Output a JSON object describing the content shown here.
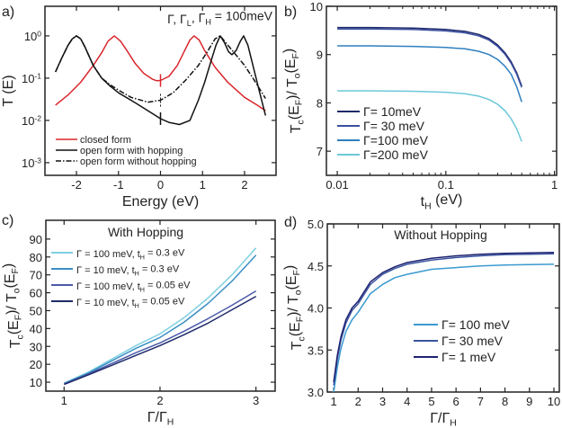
{
  "chart_data": [
    {
      "panel": "a)",
      "type": "line",
      "xlabel": "Energy (eV)",
      "ylabel": "T (E)",
      "yscale": "log",
      "xlim": [
        -2.75,
        2.75
      ],
      "ylim_log10": [
        -3.3,
        0.7
      ],
      "xticks": [
        -2,
        -1,
        0,
        1,
        2
      ],
      "xtick_labels": [
        "-2",
        "-1",
        "0",
        "1",
        "2"
      ],
      "yticks_log10": [
        0,
        -1,
        -2,
        -3
      ],
      "ytick_labels": [
        "10^0",
        "10^-1",
        "10^-2",
        "10^-3"
      ],
      "annotation": "Γ, Γ_L, Γ_H = 100meV",
      "legend_position": "bottom-left",
      "series": [
        {
          "name": "closed form",
          "color": "#d9262c",
          "dash": "solid",
          "x": [
            -2.5,
            -2.2,
            -1.9,
            -1.6,
            -1.4,
            -1.25,
            -1.1,
            -0.95,
            -0.8,
            -0.6,
            -0.4,
            -0.2,
            -0.1,
            0,
            0.2,
            0.4,
            0.55,
            0.7,
            0.8,
            0.92,
            1.05,
            1.3,
            1.6,
            2.0,
            2.3,
            2.5
          ],
          "y": [
            0.023,
            0.04,
            0.08,
            0.2,
            0.4,
            0.75,
            1.0,
            0.75,
            0.45,
            0.22,
            0.13,
            0.095,
            0.087,
            0.088,
            0.11,
            0.2,
            0.4,
            0.8,
            1.0,
            0.8,
            0.45,
            0.18,
            0.08,
            0.035,
            0.023,
            0.017
          ]
        },
        {
          "name": "open form with hopping",
          "color": "#111111",
          "dash": "solid",
          "x": [
            -2.5,
            -2.35,
            -2.2,
            -2.1,
            -2,
            -1.9,
            -1.8,
            -1.6,
            -1.4,
            -1.2,
            -1,
            -0.6,
            -0.3,
            0,
            0.2,
            0.45,
            0.7,
            0.9,
            1.05,
            1.2,
            1.32,
            1.42,
            1.52,
            1.62,
            1.7,
            1.8,
            1.9,
            1.98,
            2.08,
            2.2,
            2.35,
            2.5
          ],
          "y": [
            0.14,
            0.3,
            0.6,
            0.85,
            1.0,
            0.85,
            0.55,
            0.2,
            0.1,
            0.065,
            0.045,
            0.026,
            0.017,
            0.011,
            0.009,
            0.008,
            0.01,
            0.03,
            0.08,
            0.25,
            0.6,
            1.0,
            0.7,
            0.42,
            0.36,
            0.45,
            0.75,
            1.0,
            0.6,
            0.2,
            0.05,
            0.013
          ]
        },
        {
          "name": "open form without hopping",
          "color": "#111111",
          "dash": "dashdot",
          "x": [
            -2.5,
            -2.35,
            -2.2,
            -2.1,
            -2,
            -1.9,
            -1.8,
            -1.6,
            -1.4,
            -1.2,
            -1,
            -0.7,
            -0.3,
            0,
            0.3,
            0.6,
            0.9,
            1.1,
            1.3,
            1.42,
            1.55,
            1.8,
            2,
            2.2,
            2.5
          ],
          "y": [
            0.14,
            0.3,
            0.6,
            0.85,
            1.0,
            0.85,
            0.55,
            0.2,
            0.1,
            0.07,
            0.052,
            0.035,
            0.027,
            0.03,
            0.045,
            0.09,
            0.2,
            0.4,
            0.85,
            1.0,
            0.7,
            0.35,
            0.2,
            0.1,
            0.033
          ]
        }
      ]
    },
    {
      "panel": "b)",
      "type": "line",
      "xlabel": "t_H (eV)",
      "ylabel": "T_c(E_F)/ T_o(E_F)",
      "xscale": "log",
      "xlim_log10": [
        -2.1,
        0.02
      ],
      "ylim": [
        6.5,
        10
      ],
      "xticks_log10": [
        -2,
        -1,
        0
      ],
      "xtick_labels": [
        "0.01",
        "0.1",
        "1"
      ],
      "yticks": [
        7,
        8,
        9,
        10
      ],
      "ytick_labels": [
        "7",
        "8",
        "9",
        "10"
      ],
      "legend_position": "bottom-left",
      "x": [
        0.01,
        0.02,
        0.05,
        0.1,
        0.15,
        0.2,
        0.25,
        0.3,
        0.35,
        0.4,
        0.45,
        0.5
      ],
      "series": [
        {
          "name": "Γ= 10meV",
          "color": "#1f2a6b",
          "y": [
            9.56,
            9.56,
            9.55,
            9.52,
            9.48,
            9.42,
            9.33,
            9.2,
            9.04,
            8.85,
            8.62,
            8.35
          ]
        },
        {
          "name": "Γ= 30 meV",
          "color": "#3a4fa0",
          "y": [
            9.53,
            9.53,
            9.52,
            9.49,
            9.45,
            9.39,
            9.3,
            9.17,
            9.01,
            8.82,
            8.59,
            8.32
          ]
        },
        {
          "name": "Γ=100 meV",
          "color": "#2f7fbf",
          "y": [
            9.18,
            9.18,
            9.17,
            9.15,
            9.12,
            9.07,
            9.0,
            8.9,
            8.76,
            8.59,
            8.33,
            8.02
          ]
        },
        {
          "name": "Γ=200 meV",
          "color": "#6cc8d8",
          "y": [
            8.25,
            8.25,
            8.24,
            8.22,
            8.19,
            8.14,
            8.07,
            7.97,
            7.84,
            7.67,
            7.46,
            7.2
          ]
        }
      ]
    },
    {
      "panel": "c)",
      "type": "line",
      "title": "With Hopping",
      "xlabel": "Γ/Γ_H",
      "ylabel": "T_c(E_F)/ T_o(E_F)",
      "xlim": [
        0.81,
        3.2
      ],
      "ylim": [
        5,
        100.5
      ],
      "xticks": [
        1,
        2,
        3
      ],
      "xtick_labels": [
        "1",
        "2",
        "3"
      ],
      "yticks": [
        10,
        20,
        30,
        40,
        50,
        60,
        70,
        80,
        90
      ],
      "ytick_labels": [
        "10",
        "20",
        "30",
        "40",
        "50",
        "60",
        "70",
        "80",
        "90"
      ],
      "legend_position": "top-left",
      "x": [
        1,
        1.25,
        1.5,
        1.75,
        2,
        2.25,
        2.5,
        2.75,
        3
      ],
      "series": [
        {
          "name": "Γ = 100 meV, t_H = 0.3 eV",
          "color": "#7fd0e0",
          "y": [
            9.5,
            15.5,
            23,
            30.5,
            37,
            46,
            57,
            70,
            85
          ]
        },
        {
          "name": "Γ = 10 meV, t_H = 0.3 eV",
          "color": "#3a8ec4",
          "y": [
            9.2,
            15,
            22,
            29,
            35,
            43.5,
            54,
            66.5,
            81
          ]
        },
        {
          "name": "Γ = 100 meV, t_H = 0.05 eV",
          "color": "#4a5aa8",
          "y": [
            9,
            14.5,
            20.5,
            26.5,
            32,
            38.5,
            45.5,
            53,
            61
          ]
        },
        {
          "name": "Γ = 10 meV, t_H = 0.05 eV",
          "color": "#1f2a6b",
          "y": [
            8.7,
            14,
            19.5,
            25,
            30.5,
            36.5,
            43,
            50.5,
            58
          ]
        }
      ]
    },
    {
      "panel": "d)",
      "type": "line",
      "title": "Without Hopping",
      "xlabel": "Γ/Γ_H",
      "ylabel": "T_c(E_F)/ T_o(E_F)",
      "xlim": [
        0.74,
        10.22
      ],
      "ylim": [
        3.0,
        5.0
      ],
      "xticks": [
        1,
        2,
        3,
        4,
        5,
        6,
        7,
        8,
        9,
        10
      ],
      "xtick_labels": [
        "1",
        "2",
        "3",
        "4",
        "5",
        "6",
        "7",
        "8",
        "9",
        "10"
      ],
      "yticks": [
        3.0,
        3.5,
        4.0,
        4.5,
        5.0
      ],
      "ytick_labels": [
        "3.0",
        "3.5",
        "4.0",
        "4.5",
        "5.0"
      ],
      "legend_position": "center-right",
      "x": [
        1,
        1.15,
        1.3,
        1.5,
        1.75,
        2,
        2.5,
        3,
        3.5,
        4,
        5,
        6,
        7,
        8,
        9,
        10
      ],
      "series": [
        {
          "name": "Γ= 100 meV",
          "color": "#3a9ad0",
          "y": [
            3.0,
            3.3,
            3.52,
            3.72,
            3.86,
            3.95,
            4.17,
            4.28,
            4.36,
            4.4,
            4.46,
            4.48,
            4.5,
            4.51,
            4.515,
            4.52
          ]
        },
        {
          "name": "Γ= 30 meV",
          "color": "#3a55a0",
          "y": [
            3.08,
            3.4,
            3.62,
            3.82,
            3.97,
            4.05,
            4.28,
            4.4,
            4.47,
            4.52,
            4.57,
            4.6,
            4.62,
            4.635,
            4.64,
            4.645
          ]
        },
        {
          "name": "Γ= 1 meV",
          "color": "#1f2270",
          "y": [
            3.12,
            3.44,
            3.66,
            3.86,
            4.0,
            4.08,
            4.31,
            4.42,
            4.49,
            4.54,
            4.59,
            4.62,
            4.64,
            4.65,
            4.655,
            4.66
          ]
        }
      ]
    }
  ]
}
